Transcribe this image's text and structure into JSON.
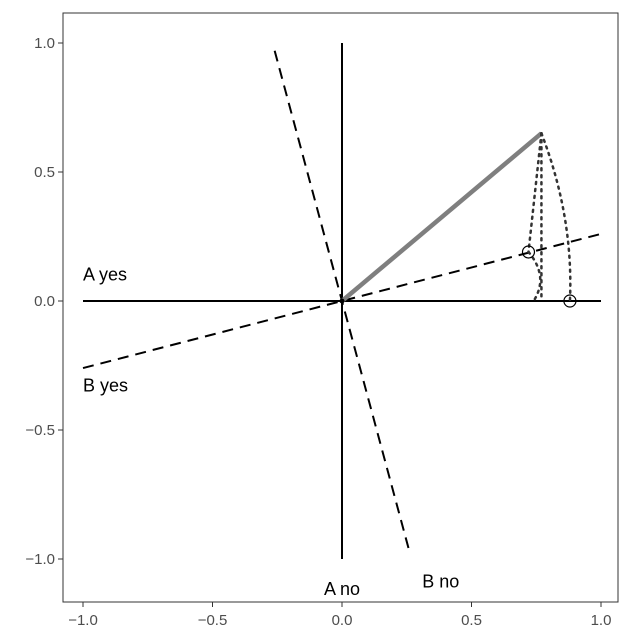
{
  "chart_data": {
    "type": "scatter",
    "title": "",
    "xlabel": "",
    "ylabel": "",
    "xlim": [
      -1.0,
      1.0
    ],
    "ylim": [
      -1.0,
      1.0
    ],
    "x_ticks": [
      -1.0,
      -0.5,
      0.0,
      0.5,
      1.0
    ],
    "x_tick_labels": [
      "−1.0",
      "−0.5",
      "0.0",
      "0.5",
      "1.0"
    ],
    "y_ticks": [
      -1.0,
      -0.5,
      0.0,
      0.5,
      1.0
    ],
    "y_tick_labels": [
      "−1.0",
      "−0.5",
      "0.0",
      "0.5",
      "1.0"
    ],
    "grid": false,
    "axes_lines": [
      {
        "style": "solid",
        "color": "#000000",
        "from": [
          -1.0,
          0.0
        ],
        "to": [
          1.0,
          0.0
        ]
      },
      {
        "style": "solid",
        "color": "#000000",
        "from": [
          0.0,
          -1.0
        ],
        "to": [
          0.0,
          1.0
        ]
      },
      {
        "style": "dashed",
        "color": "#000000",
        "from": [
          -1.0,
          -0.26
        ],
        "to": [
          1.0,
          0.26
        ]
      },
      {
        "style": "dashed",
        "color": "#000000",
        "from": [
          -0.26,
          0.97
        ],
        "to": [
          0.26,
          -0.97
        ]
      }
    ],
    "vector": {
      "color": "#7f7f7f",
      "from": [
        0.0,
        0.0
      ],
      "to": [
        0.77,
        0.65
      ]
    },
    "projections": [
      {
        "style": "dotted",
        "from": [
          0.77,
          0.65
        ],
        "to": [
          0.77,
          0.0
        ]
      },
      {
        "style": "dotted",
        "from": [
          0.77,
          0.65
        ],
        "to": [
          0.72,
          0.19
        ]
      },
      {
        "style": "dotted-arc",
        "from": [
          0.77,
          0.65
        ],
        "to": [
          0.88,
          0.0
        ]
      },
      {
        "style": "dotted-arc",
        "from": [
          0.72,
          0.19
        ],
        "to": [
          0.74,
          0.0
        ]
      }
    ],
    "points": [
      {
        "x": 0.72,
        "y": 0.19
      },
      {
        "x": 0.88,
        "y": 0.0
      }
    ],
    "annotations": [
      {
        "text": "A yes",
        "x": -1.0,
        "y": 0.08
      },
      {
        "text": "B yes",
        "x": -1.0,
        "y": -0.35
      },
      {
        "text": "A no",
        "x": 0.0,
        "y": -1.14
      },
      {
        "text": "B no",
        "x": 0.31,
        "y": -1.11
      }
    ]
  }
}
